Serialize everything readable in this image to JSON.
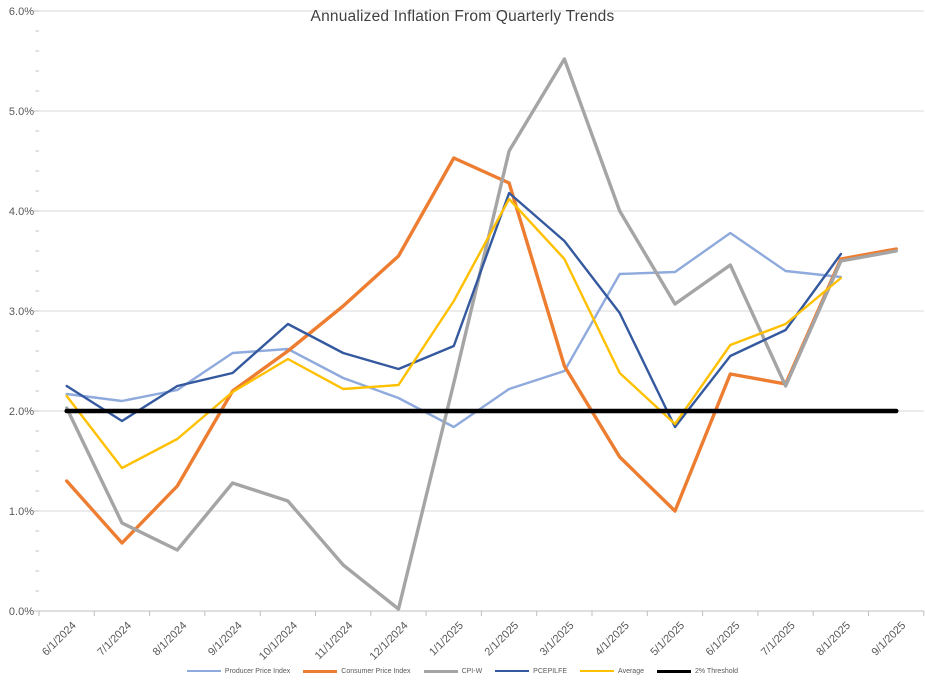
{
  "chart_data": {
    "type": "line",
    "title": "Annualized Inflation From Quarterly Trends",
    "categories": [
      "6/1/2024",
      "7/1/2024",
      "8/1/2024",
      "9/1/2024",
      "10/1/2024",
      "11/1/2024",
      "12/1/2024",
      "1/1/2025",
      "2/1/2025",
      "3/1/2025",
      "4/1/2025",
      "5/1/2025",
      "6/1/2025",
      "7/1/2025",
      "8/1/2025",
      "9/1/2025"
    ],
    "y_ticks": [
      "0.0%",
      "1.0%",
      "2.0%",
      "3.0%",
      "4.0%",
      "5.0%",
      "6.0%"
    ],
    "ylim": [
      0,
      6
    ],
    "y_unit": "percent",
    "grid": "horizontal-major",
    "legend_position": "bottom",
    "axis_label_color": "#595959",
    "gridline_color": "#D9D9D9",
    "axis_line_color": "#BFBFBF",
    "series": [
      {
        "name": "Producer Price Index",
        "color": "#8FAADC",
        "values": [
          2.17,
          2.1,
          2.21,
          2.58,
          2.62,
          2.33,
          2.13,
          1.84,
          2.22,
          2.4,
          3.37,
          3.39,
          3.78,
          3.4,
          3.34,
          null
        ]
      },
      {
        "name": "Consumer Price Index",
        "color": "#ED7D31",
        "values": [
          1.3,
          0.68,
          1.25,
          2.2,
          2.6,
          3.05,
          3.55,
          4.53,
          4.28,
          2.45,
          1.54,
          1.0,
          2.37,
          2.27,
          3.52,
          3.62
        ]
      },
      {
        "name": "CPI-W",
        "color": "#A5A5A5",
        "values": [
          2.03,
          0.88,
          0.61,
          1.28,
          1.1,
          0.46,
          0.02,
          2.28,
          4.6,
          5.52,
          4.0,
          3.07,
          3.46,
          2.25,
          3.5,
          3.6
        ]
      },
      {
        "name": "PCEPILFE",
        "color": "#35599F",
        "values": [
          2.25,
          1.9,
          2.25,
          2.38,
          2.87,
          2.58,
          2.42,
          2.65,
          4.18,
          3.7,
          2.98,
          1.84,
          2.55,
          2.81,
          3.57,
          null
        ]
      },
      {
        "name": "Average",
        "color": "#FFC000",
        "values": [
          2.15,
          1.43,
          1.72,
          2.19,
          2.52,
          2.22,
          2.26,
          3.1,
          4.12,
          3.52,
          2.38,
          1.87,
          2.66,
          2.87,
          3.33,
          null
        ]
      },
      {
        "name": "2% Threshold",
        "color": "#000000",
        "values": [
          2,
          2,
          2,
          2,
          2,
          2,
          2,
          2,
          2,
          2,
          2,
          2,
          2,
          2,
          2,
          2
        ]
      }
    ]
  }
}
